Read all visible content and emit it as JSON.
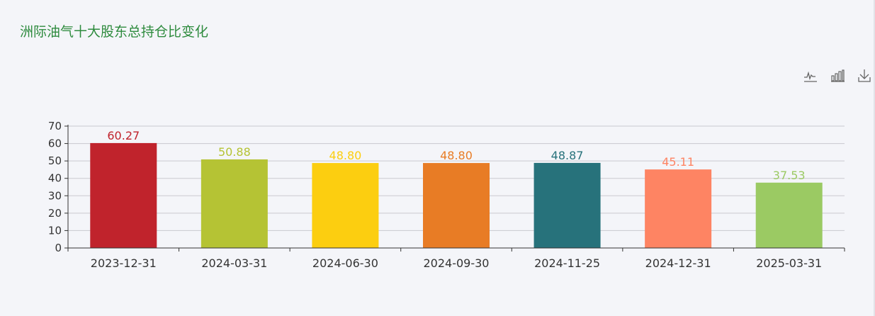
{
  "title": "洲际油气十大股东总持仓比变化",
  "toolbar": {
    "icons": [
      "line-chart-icon",
      "bar-chart-icon",
      "download-icon"
    ]
  },
  "chart_data": {
    "type": "bar",
    "title": "洲际油气十大股东总持仓比变化",
    "xlabel": "",
    "ylabel": "",
    "categories": [
      "2023-12-31",
      "2024-03-31",
      "2024-06-30",
      "2024-09-30",
      "2024-11-25",
      "2024-12-31",
      "2025-03-31"
    ],
    "values": [
      60.27,
      50.88,
      48.8,
      48.8,
      48.87,
      45.11,
      37.53
    ],
    "value_labels": [
      "60.27",
      "50.88",
      "48.80",
      "48.80",
      "48.87",
      "45.11",
      "37.53"
    ],
    "colors": [
      "#c0232c",
      "#b5c334",
      "#fcce10",
      "#e87c25",
      "#27727b",
      "#fe8463",
      "#9bca63"
    ],
    "ylim": [
      0,
      70
    ],
    "yticks": [
      0,
      10,
      20,
      30,
      40,
      50,
      60,
      70
    ],
    "grid": true,
    "legend": "none"
  }
}
